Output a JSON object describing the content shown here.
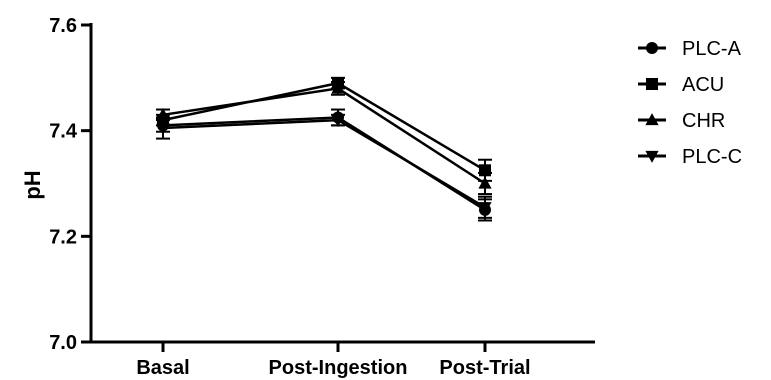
{
  "chart_data": {
    "type": "line",
    "categories": [
      "Basal",
      "Post-Ingestion",
      "Post-Trial"
    ],
    "ylabel": "pH",
    "xlabel": "",
    "ylim": [
      7.0,
      7.6
    ],
    "yticks": [
      "7.0",
      "7.2",
      "7.4",
      "7.6"
    ],
    "grid": false,
    "legend_position": "top-right",
    "series": [
      {
        "name": "PLC-A",
        "marker": "circle",
        "values": [
          7.41,
          7.425,
          7.25
        ],
        "errors": [
          0.012,
          0.015,
          0.02
        ]
      },
      {
        "name": "ACU",
        "marker": "square",
        "values": [
          7.42,
          7.49,
          7.325
        ],
        "errors": [
          0.01,
          0.01,
          0.02
        ]
      },
      {
        "name": "CHR",
        "marker": "triangle-up",
        "values": [
          7.43,
          7.48,
          7.3
        ],
        "errors": [
          0.01,
          0.012,
          0.02
        ]
      },
      {
        "name": "PLC-C",
        "marker": "triangle-down",
        "values": [
          7.405,
          7.42,
          7.255
        ],
        "errors": [
          0.02,
          0.01,
          0.02
        ]
      }
    ]
  }
}
